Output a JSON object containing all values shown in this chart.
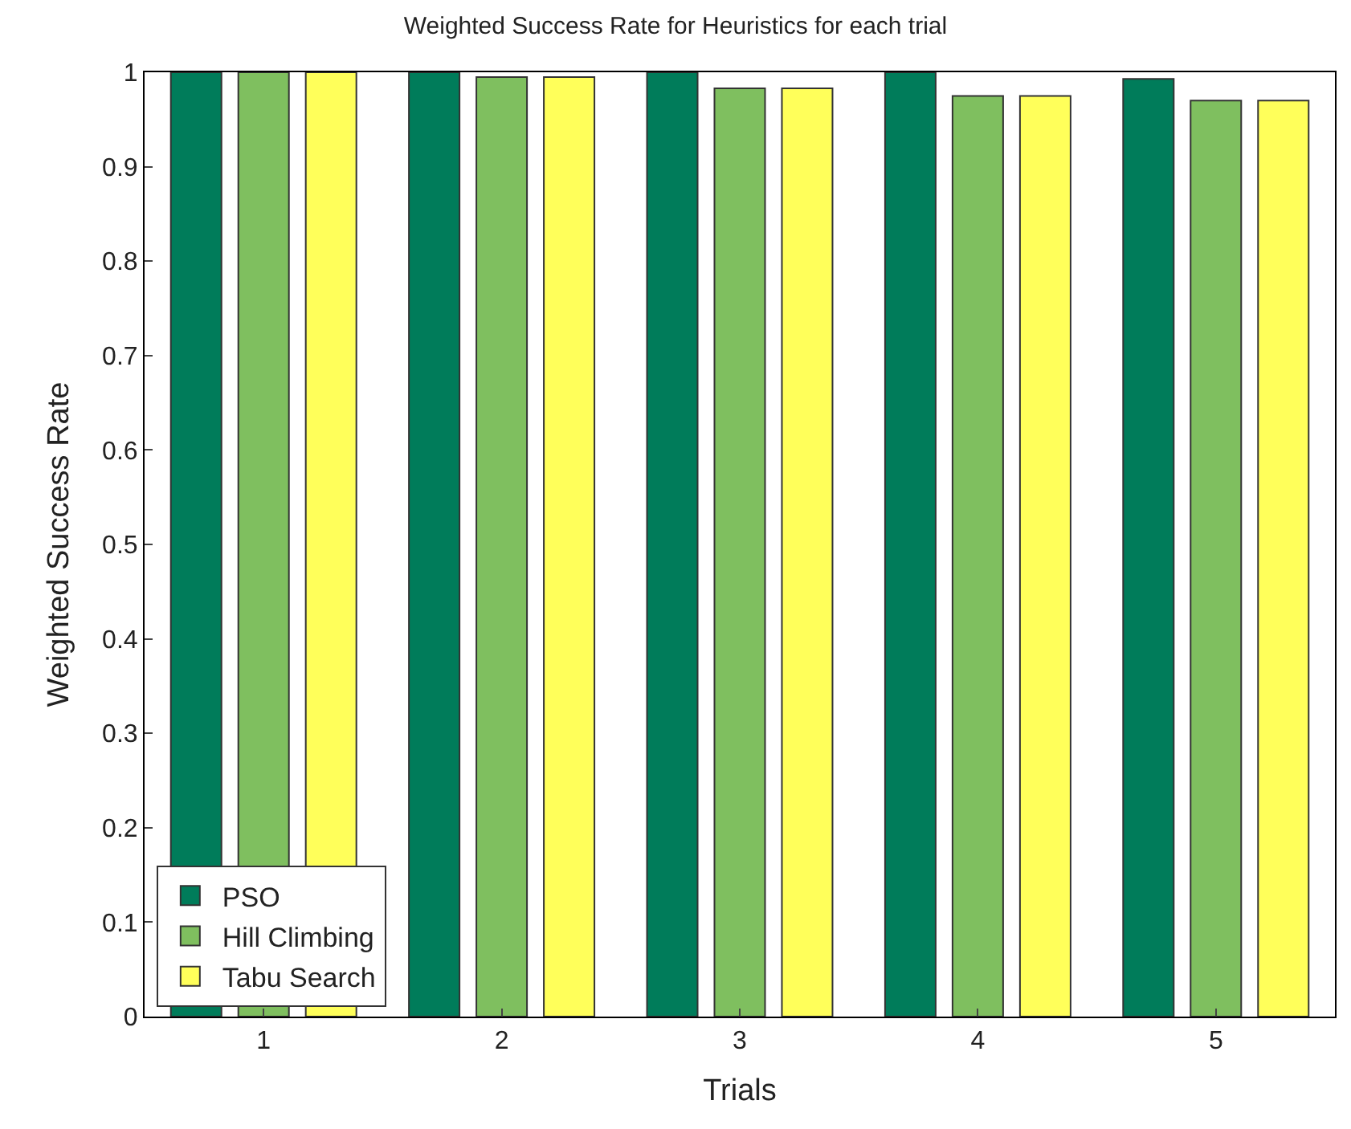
{
  "chart_data": {
    "type": "bar",
    "title": "Weighted Success Rate for Heuristics for each trial",
    "xlabel": "Trials",
    "ylabel": "Weighted Success Rate",
    "categories": [
      "1",
      "2",
      "3",
      "4",
      "5"
    ],
    "series": [
      {
        "name": "PSO",
        "color": "#007c5a",
        "values": [
          1,
          1,
          1,
          1,
          0.993
        ]
      },
      {
        "name": "Hill Climbing",
        "color": "#7fbf5f",
        "values": [
          1,
          0.995,
          0.983,
          0.975,
          0.97
        ]
      },
      {
        "name": "Tabu Search",
        "color": "#ffff5a",
        "values": [
          1,
          0.995,
          0.983,
          0.975,
          0.97
        ]
      }
    ],
    "ylim": [
      0,
      1
    ],
    "yticks": [
      0,
      0.1,
      0.2,
      0.3,
      0.4,
      0.5,
      0.6,
      0.7,
      0.8,
      0.9,
      1
    ],
    "legend": "bottom left"
  }
}
